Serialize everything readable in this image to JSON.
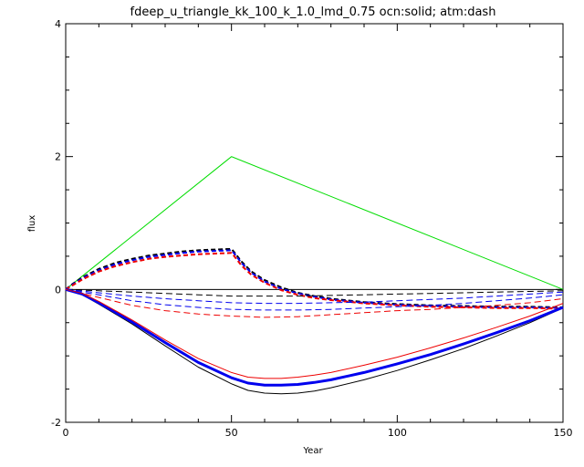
{
  "chart_data": {
    "type": "line",
    "title": "fdeep_u_triangle_kk_100_k_1.0_lmd_0.75 ocn:solid; atm:dash",
    "xlabel": "Year",
    "ylabel": "flux",
    "xlim": [
      0,
      150
    ],
    "ylim": [
      -2,
      4
    ],
    "x_ticks": [
      0,
      50,
      100,
      150
    ],
    "y_ticks": [
      -2,
      0,
      2,
      4
    ],
    "zero_line": true,
    "colors": {
      "forcing": "#00dd00",
      "black": "#000000",
      "blue": "#0000ee",
      "red": "#ee0000"
    },
    "series": [
      {
        "kind": "forcing",
        "color": "forcing",
        "style": "solid",
        "width": 1,
        "x": [
          0,
          50,
          150
        ],
        "y": [
          0,
          2,
          0
        ]
      },
      {
        "kind": "atm-upper",
        "color": "black",
        "style": "dash",
        "width": 2,
        "x": [
          0,
          2,
          5,
          10,
          15,
          20,
          25,
          30,
          35,
          40,
          45,
          50,
          51,
          53,
          56,
          60,
          65,
          70,
          75,
          80,
          90,
          100,
          110,
          120,
          130,
          140,
          150
        ],
        "y": [
          0,
          0.08,
          0.18,
          0.31,
          0.4,
          0.46,
          0.51,
          0.54,
          0.57,
          0.59,
          0.6,
          0.61,
          0.55,
          0.42,
          0.27,
          0.14,
          0.03,
          -0.05,
          -0.1,
          -0.14,
          -0.19,
          -0.22,
          -0.24,
          -0.25,
          -0.26,
          -0.26,
          -0.27
        ]
      },
      {
        "kind": "atm-upper",
        "color": "blue",
        "style": "dash",
        "width": 2,
        "x": [
          0,
          2,
          5,
          10,
          15,
          20,
          25,
          30,
          35,
          40,
          45,
          50,
          51,
          53,
          56,
          60,
          65,
          70,
          75,
          80,
          90,
          100,
          110,
          120,
          130,
          140,
          150
        ],
        "y": [
          0,
          0.07,
          0.17,
          0.29,
          0.38,
          0.44,
          0.49,
          0.52,
          0.55,
          0.57,
          0.58,
          0.59,
          0.53,
          0.4,
          0.25,
          0.12,
          0.01,
          -0.06,
          -0.11,
          -0.15,
          -0.2,
          -0.23,
          -0.25,
          -0.26,
          -0.27,
          -0.27,
          -0.28
        ]
      },
      {
        "kind": "atm-upper",
        "color": "red",
        "style": "dash",
        "width": 2,
        "x": [
          0,
          2,
          5,
          10,
          15,
          20,
          25,
          30,
          35,
          40,
          45,
          50,
          51,
          53,
          56,
          60,
          65,
          70,
          75,
          80,
          90,
          100,
          110,
          120,
          130,
          140,
          150
        ],
        "y": [
          0,
          0.06,
          0.15,
          0.27,
          0.35,
          0.41,
          0.46,
          0.49,
          0.51,
          0.53,
          0.54,
          0.55,
          0.49,
          0.36,
          0.22,
          0.1,
          -0.01,
          -0.08,
          -0.13,
          -0.16,
          -0.21,
          -0.24,
          -0.26,
          -0.27,
          -0.28,
          -0.28,
          -0.29
        ]
      },
      {
        "kind": "atm-lower",
        "color": "black",
        "style": "dash",
        "width": 1,
        "x": [
          0,
          10,
          20,
          30,
          40,
          50,
          60,
          70,
          80,
          90,
          100,
          110,
          120,
          130,
          140,
          150
        ],
        "y": [
          0,
          -0.02,
          -0.04,
          -0.06,
          -0.08,
          -0.1,
          -0.1,
          -0.1,
          -0.09,
          -0.08,
          -0.07,
          -0.06,
          -0.05,
          -0.04,
          -0.03,
          -0.02
        ]
      },
      {
        "kind": "atm-lower",
        "color": "blue",
        "style": "dash",
        "width": 1,
        "x": [
          0,
          10,
          20,
          30,
          40,
          50,
          60,
          70,
          80,
          90,
          100,
          110,
          120,
          130,
          140,
          150
        ],
        "y": [
          0,
          -0.05,
          -0.1,
          -0.14,
          -0.17,
          -0.2,
          -0.21,
          -0.21,
          -0.2,
          -0.19,
          -0.17,
          -0.15,
          -0.13,
          -0.1,
          -0.07,
          -0.04
        ]
      },
      {
        "kind": "atm-lower",
        "color": "blue",
        "style": "dash",
        "width": 1,
        "x": [
          0,
          10,
          20,
          30,
          40,
          50,
          60,
          70,
          80,
          90,
          100,
          110,
          120,
          130,
          140,
          150
        ],
        "y": [
          0,
          -0.08,
          -0.17,
          -0.23,
          -0.27,
          -0.3,
          -0.31,
          -0.31,
          -0.3,
          -0.28,
          -0.26,
          -0.24,
          -0.21,
          -0.17,
          -0.13,
          -0.08
        ]
      },
      {
        "kind": "atm-lower",
        "color": "red",
        "style": "dash",
        "width": 1,
        "x": [
          0,
          10,
          20,
          30,
          40,
          50,
          60,
          70,
          80,
          90,
          100,
          110,
          120,
          130,
          140,
          150
        ],
        "y": [
          0,
          -0.12,
          -0.24,
          -0.32,
          -0.37,
          -0.4,
          -0.42,
          -0.41,
          -0.38,
          -0.35,
          -0.32,
          -0.3,
          -0.27,
          -0.24,
          -0.2,
          -0.14
        ]
      },
      {
        "kind": "ocean",
        "color": "black",
        "style": "solid",
        "width": 1,
        "x": [
          0,
          5,
          10,
          20,
          30,
          40,
          50,
          55,
          60,
          65,
          70,
          75,
          80,
          90,
          100,
          110,
          120,
          130,
          140,
          150
        ],
        "y": [
          0,
          -0.08,
          -0.22,
          -0.52,
          -0.85,
          -1.17,
          -1.42,
          -1.52,
          -1.56,
          -1.57,
          -1.56,
          -1.53,
          -1.48,
          -1.36,
          -1.22,
          -1.06,
          -0.89,
          -0.7,
          -0.5,
          -0.28
        ]
      },
      {
        "kind": "ocean",
        "color": "blue",
        "style": "solid",
        "width": 3,
        "x": [
          0,
          5,
          10,
          20,
          30,
          40,
          50,
          55,
          60,
          65,
          70,
          75,
          80,
          90,
          100,
          110,
          120,
          130,
          140,
          150
        ],
        "y": [
          0,
          -0.07,
          -0.2,
          -0.49,
          -0.8,
          -1.1,
          -1.33,
          -1.41,
          -1.44,
          -1.44,
          -1.43,
          -1.4,
          -1.36,
          -1.25,
          -1.12,
          -0.98,
          -0.82,
          -0.65,
          -0.47,
          -0.27
        ]
      },
      {
        "kind": "ocean",
        "color": "red",
        "style": "solid",
        "width": 1,
        "x": [
          0,
          5,
          10,
          20,
          30,
          40,
          50,
          55,
          60,
          65,
          70,
          75,
          80,
          90,
          100,
          110,
          120,
          130,
          140,
          150
        ],
        "y": [
          0,
          -0.06,
          -0.18,
          -0.46,
          -0.76,
          -1.04,
          -1.25,
          -1.32,
          -1.34,
          -1.34,
          -1.32,
          -1.29,
          -1.25,
          -1.14,
          -1.02,
          -0.88,
          -0.73,
          -0.57,
          -0.4,
          -0.21
        ]
      }
    ]
  }
}
